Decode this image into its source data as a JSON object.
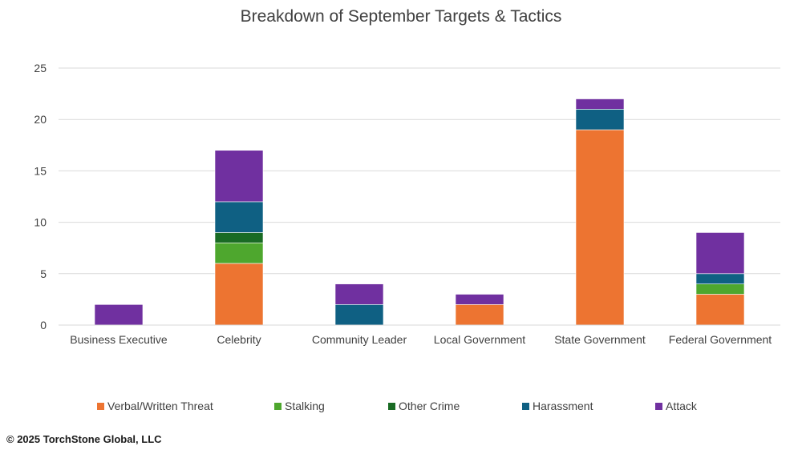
{
  "chart_data": {
    "type": "bar",
    "stacked": true,
    "title": "Breakdown of September Targets & Tactics",
    "categories": [
      "Business Executive",
      "Celebrity",
      "Community Leader",
      "Local Government",
      "State Government",
      "Federal Government"
    ],
    "series": [
      {
        "name": "Verbal/Written Threat",
        "color": "#ED7431",
        "values": [
          0,
          6,
          0,
          2,
          19,
          3
        ]
      },
      {
        "name": "Stalking",
        "color": "#4EA72E",
        "values": [
          0,
          2,
          0,
          0,
          0,
          1
        ]
      },
      {
        "name": "Other Crime",
        "color": "#196B24",
        "values": [
          0,
          1,
          0,
          0,
          0,
          0
        ]
      },
      {
        "name": "Harassment",
        "color": "#0F6083",
        "values": [
          0,
          3,
          2,
          0,
          2,
          1
        ]
      },
      {
        "name": "Attack",
        "color": "#7030A0",
        "values": [
          2,
          5,
          2,
          1,
          1,
          4
        ]
      }
    ],
    "ylim": [
      0,
      25
    ],
    "yticks": [
      "0",
      "5",
      "10",
      "15",
      "20",
      "25"
    ],
    "grid": true,
    "legend": "bottom"
  },
  "footer": {
    "copyright": "© 2025 TorchStone Global, LLC"
  }
}
